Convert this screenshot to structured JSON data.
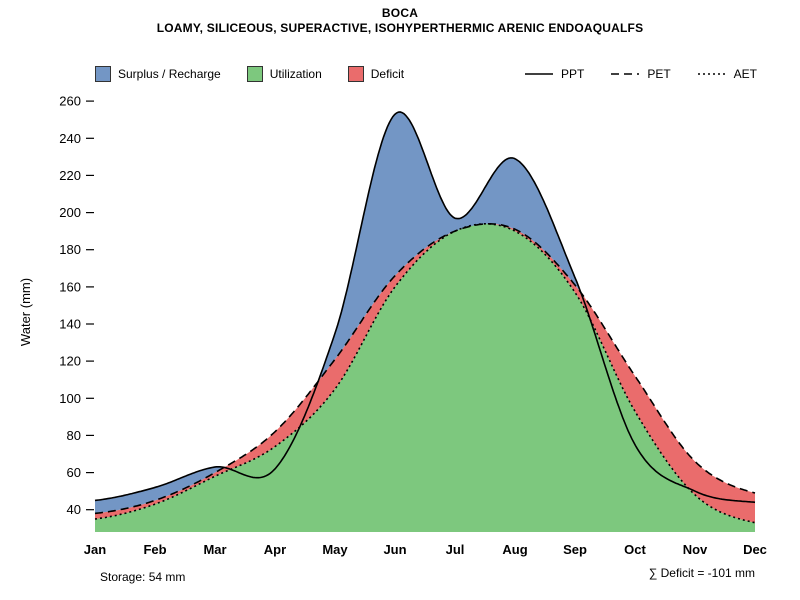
{
  "header": {
    "title": "BOCA",
    "subtitle": "LOAMY, SILICEOUS, SUPERACTIVE, ISOHYPERTHERMIC ARENIC ENDOAQUALFS"
  },
  "footer": {
    "storage": "Storage: 54 mm",
    "deficit_sum": "∑ Deficit = -101 mm"
  },
  "chart_data": {
    "type": "area",
    "title": "BOCA",
    "subtitle": "LOAMY, SILICEOUS, SUPERACTIVE, ISOHYPERTHERMIC ARENIC ENDOAQUALFS",
    "ylabel": "Water (mm)",
    "months": [
      "Jan",
      "Feb",
      "Mar",
      "Apr",
      "May",
      "Jun",
      "Jul",
      "Aug",
      "Sep",
      "Oct",
      "Nov",
      "Dec"
    ],
    "yticks": [
      40,
      60,
      80,
      100,
      120,
      140,
      160,
      180,
      200,
      220,
      240,
      260
    ],
    "ylim": [
      28,
      266
    ],
    "grid": false,
    "legend_position": "top",
    "series": [
      {
        "name": "PPT",
        "style": "solid",
        "values": [
          45,
          52,
          63,
          62,
          135,
          253,
          197,
          229,
          165,
          75,
          50,
          44
        ]
      },
      {
        "name": "PET",
        "style": "dashed",
        "values": [
          38,
          45,
          60,
          82,
          121,
          166,
          190,
          191,
          161,
          112,
          66,
          49
        ]
      },
      {
        "name": "AET",
        "style": "dotted",
        "values": [
          35,
          43,
          58,
          74,
          105,
          160,
          190,
          190,
          157,
          93,
          48,
          33
        ]
      }
    ],
    "areas": [
      {
        "name": "Surplus / Recharge",
        "color": "#7396C5",
        "between": "PET_and_PPT_where_PPT_greater"
      },
      {
        "name": "Utilization",
        "color": "#7DC87E",
        "between": "baseline_and_AET"
      },
      {
        "name": "Deficit",
        "color": "#EA6C6C",
        "between": "AET_and_PET_where_PET_greater"
      }
    ],
    "line_color": "#000000",
    "storage_mm": 54,
    "deficit_sum_mm": -101
  }
}
